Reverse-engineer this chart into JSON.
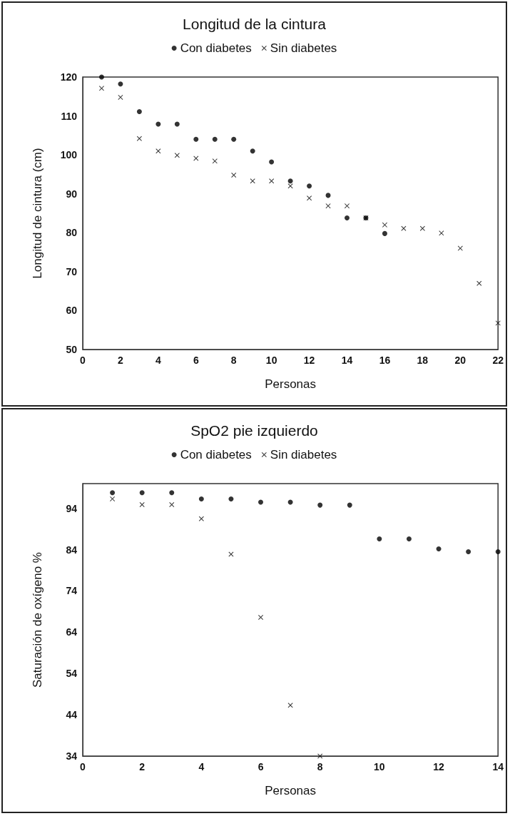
{
  "chart_data": [
    {
      "type": "scatter",
      "title": "Longitud de la cintura",
      "xlabel": "Personas",
      "ylabel": "Longitud de cintura (cm)",
      "xlim": [
        0,
        22
      ],
      "xticks": [
        0,
        2,
        4,
        6,
        8,
        10,
        12,
        14,
        16,
        18,
        20,
        22
      ],
      "ylim": [
        50,
        120
      ],
      "yticks": [
        50,
        60,
        70,
        80,
        90,
        100,
        110,
        120
      ],
      "grid": false,
      "legend": "top",
      "series": [
        {
          "name": "Con diabetes",
          "color": "#000000",
          "marker": "circle",
          "x": [
            1,
            2,
            3,
            4,
            5,
            6,
            7,
            8,
            9,
            10,
            11,
            12,
            13,
            14,
            15,
            16
          ],
          "values": [
            120,
            118.2,
            111.1,
            107.9,
            107.9,
            104,
            104,
            104,
            101,
            98.2,
            93.3,
            92,
            89.6,
            83.8,
            83.8,
            79.8
          ]
        },
        {
          "name": "Sin diabetes",
          "color": "#000000",
          "marker": "cross",
          "x": [
            1,
            2,
            3,
            4,
            5,
            6,
            7,
            8,
            9,
            10,
            11,
            12,
            13,
            14,
            15,
            16,
            17,
            18,
            19,
            20,
            21,
            22
          ],
          "values": [
            117.1,
            114.8,
            104.2,
            101,
            99.9,
            99.1,
            98.4,
            94.8,
            93.3,
            93.3,
            92,
            88.9,
            86.9,
            86.9,
            83.8,
            82,
            81.1,
            81.1,
            79.9,
            76,
            67,
            56.8
          ]
        }
      ]
    },
    {
      "type": "scatter",
      "title": "SpO2 pie izquierdo",
      "xlabel": "Personas",
      "ylabel": "Saturación de oxígeno %",
      "xlim": [
        0,
        14
      ],
      "xticks": [
        0,
        2,
        4,
        6,
        8,
        10,
        12,
        14
      ],
      "ylim": [
        34,
        100
      ],
      "yticks": [
        34,
        44,
        54,
        64,
        74,
        84,
        94
      ],
      "grid": false,
      "legend": "top",
      "series": [
        {
          "name": "Con diabetes",
          "color": "#000000",
          "marker": "circle",
          "x": [
            1,
            2,
            3,
            4,
            5,
            6,
            7,
            8,
            9,
            10,
            11,
            12,
            13,
            14
          ],
          "values": [
            97.8,
            97.8,
            97.8,
            96.3,
            96.3,
            95.5,
            95.5,
            94.8,
            94.8,
            86.6,
            86.6,
            84.2,
            83.5,
            83.5
          ]
        },
        {
          "name": "Sin diabetes",
          "color": "#000000",
          "marker": "cross",
          "x": [
            1,
            2,
            3,
            4,
            5,
            6,
            7,
            8
          ],
          "values": [
            96.3,
            94.9,
            94.9,
            91.5,
            82.9,
            67.6,
            46.3,
            34
          ]
        }
      ]
    }
  ]
}
